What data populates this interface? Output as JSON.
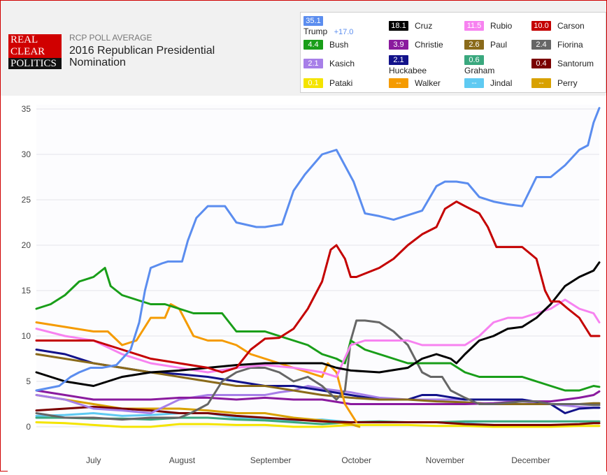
{
  "logo": {
    "line1": "REAL",
    "line2": "CLEAR",
    "line3": "POLITICS"
  },
  "header": {
    "subtitle": "RCP POLL AVERAGE",
    "title": "2016 Republican Presidential Nomination"
  },
  "legend": [
    {
      "name": "Trump",
      "value": "35.1",
      "change": "+17.0",
      "color": "#5b8def"
    },
    {
      "name": "Cruz",
      "value": "18.1",
      "color": "#000000"
    },
    {
      "name": "Rubio",
      "value": "11.5",
      "color": "#f782f0"
    },
    {
      "name": "Carson",
      "value": "10.0",
      "color": "#c40000"
    },
    {
      "name": "Bush",
      "value": "4.4",
      "color": "#199e19"
    },
    {
      "name": "Christie",
      "value": "3.9",
      "color": "#8a1a9e"
    },
    {
      "name": "Paul",
      "value": "2.6",
      "color": "#8a6a1a"
    },
    {
      "name": "Fiorina",
      "value": "2.4",
      "color": "#666666"
    },
    {
      "name": "Kasich",
      "value": "2.1",
      "color": "#a77fe8"
    },
    {
      "name": "Huckabee",
      "value": "2.1",
      "color": "#12128a"
    },
    {
      "name": "Graham",
      "value": "0.6",
      "color": "#3aa87e"
    },
    {
      "name": "Santorum",
      "value": "0.4",
      "color": "#7a0000"
    },
    {
      "name": "Pataki",
      "value": "0.1",
      "color": "#f4e400"
    },
    {
      "name": "Walker",
      "value": "--",
      "color": "#f59b00"
    },
    {
      "name": "Jindal",
      "value": "--",
      "color": "#5fcaf2"
    },
    {
      "name": "Perry",
      "value": "--",
      "color": "#d8a100"
    }
  ],
  "chart_data": {
    "type": "line",
    "title": "2016 Republican Presidential Nomination",
    "xlabel": "",
    "ylabel": "",
    "ylim": [
      0,
      35
    ],
    "yticks": [
      0,
      5,
      10,
      15,
      20,
      25,
      30,
      35
    ],
    "xticks": [
      "July",
      "August",
      "September",
      "October",
      "November",
      "December"
    ],
    "x_unit": "days since July 1, 2015",
    "x_range": [
      -20,
      177
    ],
    "xtick_positions": [
      0,
      31,
      62,
      92,
      123,
      153
    ],
    "grid": true,
    "series": [
      {
        "name": "Trump",
        "x": [
          -20,
          -12,
          -8,
          -5,
          -1,
          3,
          8,
          13,
          16,
          18,
          20,
          24,
          26,
          29,
          31,
          33,
          36,
          40,
          46,
          50,
          57,
          60,
          66,
          70,
          74,
          80,
          85,
          91,
          95,
          100,
          105,
          110,
          115,
          120,
          123,
          127,
          131,
          135,
          140,
          145,
          150,
          155,
          160,
          165,
          170,
          173,
          175,
          177
        ],
        "values": [
          4.0,
          4.5,
          5.5,
          6,
          6.5,
          6.5,
          6.8,
          8.5,
          11.5,
          15.0,
          17.5,
          18.0,
          18.2,
          18.2,
          18.2,
          20.5,
          23,
          24.3,
          24.3,
          22.5,
          22.0,
          22.0,
          22.3,
          26,
          27.8,
          30.0,
          30.5,
          27,
          23.5,
          23.2,
          22.8,
          23.3,
          23.8,
          26.5,
          27.0,
          27.0,
          26.8,
          25.3,
          24.8,
          24.5,
          24.3,
          27.5,
          27.5,
          28.8,
          30.5,
          31.0,
          33.5,
          35.1
        ]
      },
      {
        "name": "Cruz",
        "x": [
          -20,
          -10,
          0,
          10,
          20,
          30,
          40,
          50,
          60,
          70,
          80,
          85,
          90,
          100,
          110,
          115,
          120,
          125,
          127,
          130,
          135,
          140,
          145,
          150,
          155,
          160,
          165,
          170,
          175,
          177
        ],
        "values": [
          6.0,
          5.0,
          4.5,
          5.5,
          6.0,
          6.2,
          6.5,
          6.8,
          7.0,
          7.0,
          7.0,
          6.5,
          6.2,
          6.0,
          6.5,
          7.5,
          8.0,
          7.5,
          7.0,
          8.0,
          9.5,
          10.0,
          10.8,
          11.0,
          12.0,
          13.5,
          15.5,
          16.5,
          17.2,
          18.1
        ]
      },
      {
        "name": "Rubio",
        "x": [
          -20,
          -10,
          0,
          10,
          20,
          30,
          40,
          50,
          60,
          70,
          80,
          85,
          90,
          95,
          100,
          110,
          115,
          120,
          125,
          130,
          135,
          140,
          145,
          150,
          155,
          160,
          165,
          170,
          175,
          177
        ],
        "values": [
          10.8,
          10.0,
          9.5,
          8.0,
          7.0,
          6.5,
          6.0,
          6.5,
          6.8,
          6.5,
          6.0,
          5.5,
          9.0,
          9.5,
          9.5,
          9.5,
          9.0,
          9.0,
          9.0,
          9.0,
          10.0,
          11.5,
          12.0,
          12.0,
          12.5,
          13.0,
          14.0,
          13.0,
          12.5,
          11.5
        ]
      },
      {
        "name": "Carson",
        "x": [
          -20,
          -10,
          0,
          10,
          20,
          30,
          40,
          45,
          50,
          55,
          60,
          65,
          70,
          75,
          80,
          83,
          85,
          88,
          90,
          92,
          96,
          100,
          105,
          110,
          115,
          120,
          123,
          127,
          130,
          135,
          138,
          141,
          145,
          150,
          155,
          158,
          160,
          163,
          166,
          170,
          174,
          177
        ],
        "values": [
          9.5,
          9.5,
          9.5,
          8.5,
          7.5,
          7.0,
          6.5,
          6.0,
          6.5,
          8.5,
          9.7,
          9.8,
          10.8,
          13.0,
          16.0,
          19.5,
          20.0,
          18.5,
          16.5,
          16.5,
          17.0,
          17.5,
          18.5,
          20.0,
          21.2,
          22.0,
          24.0,
          24.8,
          24.3,
          23.5,
          22.0,
          19.8,
          19.8,
          19.8,
          18.5,
          15.0,
          13.8,
          13.8,
          13.0,
          12.0,
          10.0,
          10.0
        ]
      },
      {
        "name": "Bush",
        "x": [
          -20,
          -15,
          -10,
          -5,
          0,
          4,
          6,
          10,
          15,
          20,
          25,
          30,
          35,
          40,
          45,
          50,
          55,
          60,
          65,
          70,
          75,
          80,
          85,
          88,
          90,
          95,
          100,
          105,
          110,
          115,
          120,
          125,
          130,
          135,
          140,
          145,
          150,
          155,
          160,
          165,
          170,
          175,
          177
        ],
        "values": [
          13.0,
          13.5,
          14.5,
          16.0,
          16.5,
          17.5,
          15.5,
          14.5,
          14.0,
          13.5,
          13.5,
          13.0,
          12.5,
          12.5,
          12.5,
          10.5,
          10.5,
          10.5,
          10.0,
          9.5,
          9.0,
          8.0,
          7.5,
          7.0,
          9.5,
          8.5,
          8.0,
          7.5,
          7.0,
          7.0,
          7.0,
          7.0,
          6.0,
          5.5,
          5.5,
          5.5,
          5.5,
          5.0,
          4.5,
          4.0,
          4.0,
          4.5,
          4.4
        ]
      },
      {
        "name": "Christie",
        "x": [
          -20,
          -10,
          0,
          10,
          20,
          30,
          40,
          50,
          60,
          70,
          80,
          90,
          100,
          110,
          120,
          130,
          140,
          150,
          160,
          170,
          175,
          177
        ],
        "values": [
          4.0,
          3.5,
          3.0,
          3.0,
          3.0,
          3.2,
          3.2,
          3.0,
          3.2,
          3.0,
          3.0,
          2.5,
          2.5,
          2.5,
          2.5,
          2.5,
          2.6,
          2.8,
          2.8,
          3.2,
          3.5,
          3.9
        ]
      },
      {
        "name": "Paul",
        "x": [
          -20,
          -10,
          0,
          10,
          20,
          30,
          40,
          50,
          60,
          70,
          80,
          90,
          100,
          110,
          120,
          130,
          140,
          150,
          160,
          170,
          175,
          177
        ],
        "values": [
          8.0,
          7.5,
          7.0,
          6.5,
          6.0,
          5.5,
          5.0,
          4.5,
          4.5,
          4.0,
          3.5,
          3.2,
          3.0,
          3.0,
          2.8,
          2.7,
          2.5,
          2.5,
          2.5,
          2.5,
          2.6,
          2.6
        ]
      },
      {
        "name": "Fiorina",
        "x": [
          -20,
          -10,
          0,
          10,
          20,
          30,
          34,
          40,
          45,
          50,
          55,
          60,
          65,
          70,
          75,
          80,
          85,
          88,
          90,
          92,
          95,
          100,
          105,
          110,
          115,
          118,
          122,
          125,
          130,
          135,
          140,
          150,
          155,
          160,
          165,
          170,
          175,
          177
        ],
        "values": [
          1.5,
          1.0,
          1.0,
          0.8,
          1.0,
          1.0,
          1.5,
          2.5,
          5.0,
          6.0,
          6.5,
          6.5,
          6.0,
          5.0,
          5.5,
          4.5,
          3.0,
          4.0,
          9.5,
          11.7,
          11.7,
          11.5,
          10.5,
          9.0,
          6.0,
          5.5,
          5.5,
          4.0,
          3.2,
          2.5,
          2.5,
          2.8,
          2.8,
          2.5,
          2.5,
          2.5,
          2.4,
          2.4
        ]
      },
      {
        "name": "Kasich",
        "x": [
          -20,
          -10,
          0,
          10,
          20,
          30,
          40,
          50,
          60,
          65,
          70,
          75,
          80,
          85,
          90,
          95,
          100,
          110,
          120,
          130,
          140,
          150,
          160,
          170,
          175,
          177
        ],
        "values": [
          3.5,
          3.0,
          2.0,
          1.8,
          1.5,
          3.0,
          3.5,
          3.5,
          3.5,
          3.8,
          4.0,
          4.5,
          4.2,
          4.0,
          3.8,
          3.5,
          3.2,
          3.0,
          3.0,
          3.0,
          3.0,
          2.8,
          2.5,
          2.2,
          2.1,
          2.1
        ]
      },
      {
        "name": "Huckabee",
        "x": [
          -20,
          -10,
          0,
          10,
          20,
          30,
          40,
          50,
          60,
          70,
          80,
          90,
          100,
          110,
          115,
          120,
          130,
          140,
          150,
          160,
          165,
          170,
          175,
          177
        ],
        "values": [
          8.5,
          8.0,
          7.0,
          6.5,
          6.0,
          5.8,
          5.5,
          5.0,
          4.5,
          4.5,
          4.0,
          3.5,
          3.0,
          3.0,
          3.5,
          3.5,
          3.0,
          3.0,
          3.0,
          2.5,
          1.5,
          2.0,
          2.1,
          2.1
        ]
      },
      {
        "name": "Graham",
        "x": [
          -20,
          -10,
          0,
          10,
          20,
          30,
          40,
          50,
          60,
          70,
          80,
          90,
          100,
          110,
          120,
          130,
          140,
          150,
          160,
          170,
          177
        ],
        "values": [
          1.0,
          1.0,
          0.9,
          0.9,
          0.8,
          1.0,
          1.0,
          0.8,
          0.7,
          0.5,
          0.3,
          0.5,
          0.6,
          0.5,
          0.5,
          0.6,
          0.6,
          0.6,
          0.6,
          0.6,
          0.6
        ]
      },
      {
        "name": "Santorum",
        "x": [
          -20,
          -10,
          0,
          10,
          20,
          30,
          40,
          50,
          60,
          70,
          80,
          90,
          100,
          110,
          120,
          130,
          140,
          150,
          160,
          170,
          175,
          177
        ],
        "values": [
          1.8,
          2.0,
          2.2,
          2.0,
          1.8,
          1.5,
          1.5,
          1.2,
          1.0,
          0.8,
          0.6,
          0.5,
          0.5,
          0.5,
          0.5,
          0.3,
          0.2,
          0.2,
          0.2,
          0.3,
          0.4,
          0.4
        ]
      },
      {
        "name": "Pataki",
        "x": [
          -20,
          -10,
          0,
          10,
          20,
          30,
          40,
          50,
          60,
          70,
          80,
          90,
          100,
          110,
          120,
          130,
          140,
          150,
          160,
          170,
          177
        ],
        "values": [
          0.5,
          0.4,
          0.2,
          0.0,
          0.0,
          0.3,
          0.3,
          0.2,
          0.2,
          0.0,
          0.0,
          0.2,
          0.2,
          0.2,
          0.1,
          0.1,
          0.0,
          0.0,
          0.0,
          0.1,
          0.1
        ]
      },
      {
        "name": "Walker",
        "x": [
          -20,
          -10,
          0,
          5,
          10,
          15,
          20,
          25,
          27,
          30,
          35,
          40,
          45,
          50,
          55,
          60,
          65,
          70,
          75,
          80,
          82,
          85,
          88,
          92
        ],
        "values": [
          11.5,
          11.0,
          10.5,
          10.5,
          9.0,
          9.5,
          12.0,
          12.0,
          13.5,
          13.0,
          10.0,
          9.5,
          9.5,
          9.0,
          8.0,
          7.5,
          7.0,
          6.5,
          6.0,
          5.5,
          7.0,
          6.0,
          2.5,
          0.5
        ]
      },
      {
        "name": "Jindal",
        "x": [
          -20,
          -10,
          0,
          10,
          20,
          30,
          40,
          50,
          60,
          70,
          80,
          90,
          100,
          110,
          120,
          130,
          140
        ],
        "values": [
          1.2,
          1.3,
          1.5,
          1.2,
          1.3,
          1.5,
          1.5,
          1.0,
          0.8,
          0.7,
          0.8,
          0.5,
          0.5,
          0.5,
          0.5,
          0.4,
          0.2
        ]
      },
      {
        "name": "Perry",
        "x": [
          -20,
          -10,
          0,
          10,
          20,
          30,
          40,
          50,
          60,
          70,
          80,
          90,
          93
        ],
        "values": [
          3.5,
          3.0,
          2.5,
          2.0,
          2.0,
          2.0,
          1.8,
          1.5,
          1.5,
          1.0,
          0.7,
          0.3,
          0.0
        ]
      }
    ]
  }
}
